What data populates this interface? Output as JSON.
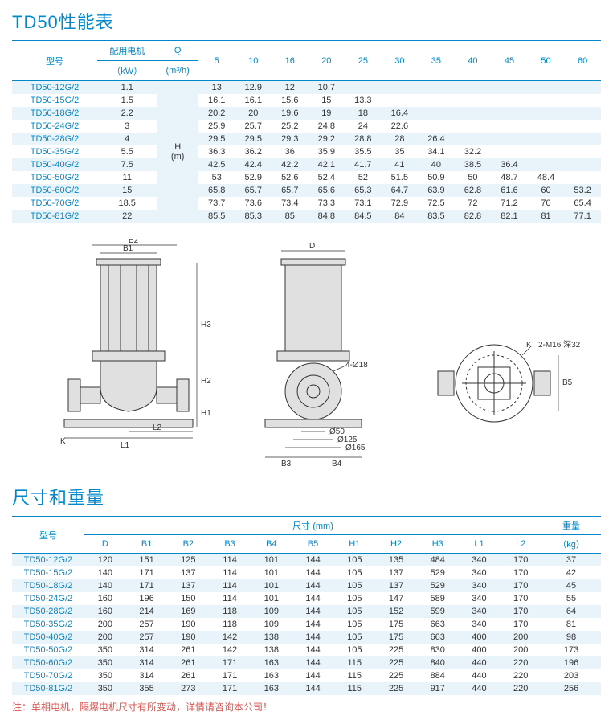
{
  "perfTitle": "TD50性能表",
  "dimTitle": "尺寸和重量",
  "note": "注：单相电机，隔爆电机尺寸有所变动，详情请咨询本公司！",
  "perfHeaders": {
    "model": "型号",
    "motor": "配用电机",
    "motorUnit": "（kW）",
    "q": "Q",
    "qUnit": "(m³/h)",
    "h": "H",
    "hUnit": "(m)",
    "flows": [
      "5",
      "10",
      "16",
      "20",
      "25",
      "30",
      "35",
      "40",
      "45",
      "50",
      "60"
    ]
  },
  "perfRows": [
    {
      "m": "TD50-12G/2",
      "kw": "1.1",
      "v": [
        "13",
        "12.9",
        "12",
        "10.7",
        "",
        "",
        "",
        "",
        "",
        "",
        ""
      ]
    },
    {
      "m": "TD50-15G/2",
      "kw": "1.5",
      "v": [
        "16.1",
        "16.1",
        "15.6",
        "15",
        "13.3",
        "",
        "",
        "",
        "",
        "",
        ""
      ]
    },
    {
      "m": "TD50-18G/2",
      "kw": "2.2",
      "v": [
        "20.2",
        "20",
        "19.6",
        "19",
        "18",
        "16.4",
        "",
        "",
        "",
        "",
        ""
      ]
    },
    {
      "m": "TD50-24G/2",
      "kw": "3",
      "v": [
        "25.9",
        "25.7",
        "25.2",
        "24.8",
        "24",
        "22.6",
        "",
        "",
        "",
        "",
        ""
      ]
    },
    {
      "m": "TD50-28G/2",
      "kw": "4",
      "v": [
        "29.5",
        "29.5",
        "29.3",
        "29.2",
        "28.8",
        "28",
        "26.4",
        "",
        "",
        "",
        ""
      ]
    },
    {
      "m": "TD50-35G/2",
      "kw": "5.5",
      "v": [
        "36.3",
        "36.2",
        "36",
        "35.9",
        "35.5",
        "35",
        "34.1",
        "32.2",
        "",
        "",
        ""
      ]
    },
    {
      "m": "TD50-40G/2",
      "kw": "7.5",
      "v": [
        "42.5",
        "42.4",
        "42.2",
        "42.1",
        "41.7",
        "41",
        "40",
        "38.5",
        "36.4",
        "",
        ""
      ]
    },
    {
      "m": "TD50-50G/2",
      "kw": "11",
      "v": [
        "53",
        "52.9",
        "52.6",
        "52.4",
        "52",
        "51.5",
        "50.9",
        "50",
        "48.7",
        "48.4",
        ""
      ]
    },
    {
      "m": "TD50-60G/2",
      "kw": "15",
      "v": [
        "65.8",
        "65.7",
        "65.7",
        "65.6",
        "65.3",
        "64.7",
        "63.9",
        "62.8",
        "61.6",
        "60",
        "53.2"
      ]
    },
    {
      "m": "TD50-70G/2",
      "kw": "18.5",
      "v": [
        "73.7",
        "73.6",
        "73.4",
        "73.3",
        "73.1",
        "72.9",
        "72.5",
        "72",
        "71.2",
        "70",
        "65.4"
      ]
    },
    {
      "m": "TD50-81G/2",
      "kw": "22",
      "v": [
        "85.5",
        "85.3",
        "85",
        "84.8",
        "84.5",
        "84",
        "83.5",
        "82.8",
        "82.1",
        "81",
        "77.1"
      ]
    }
  ],
  "dimHeaders": {
    "model": "型号",
    "dim": "尺寸 (mm)",
    "weight": "重量",
    "weightUnit": "（kg）",
    "cols": [
      "D",
      "B1",
      "B2",
      "B3",
      "B4",
      "B5",
      "H1",
      "H2",
      "H3",
      "L1",
      "L2"
    ]
  },
  "dimRows": [
    {
      "m": "TD50-12G/2",
      "v": [
        "120",
        "151",
        "125",
        "114",
        "101",
        "144",
        "105",
        "135",
        "484",
        "340",
        "170"
      ],
      "w": "37"
    },
    {
      "m": "TD50-15G/2",
      "v": [
        "140",
        "171",
        "137",
        "114",
        "101",
        "144",
        "105",
        "137",
        "529",
        "340",
        "170"
      ],
      "w": "42"
    },
    {
      "m": "TD50-18G/2",
      "v": [
        "140",
        "171",
        "137",
        "114",
        "101",
        "144",
        "105",
        "137",
        "529",
        "340",
        "170"
      ],
      "w": "45"
    },
    {
      "m": "TD50-24G/2",
      "v": [
        "160",
        "196",
        "150",
        "114",
        "101",
        "144",
        "105",
        "147",
        "589",
        "340",
        "170"
      ],
      "w": "55"
    },
    {
      "m": "TD50-28G/2",
      "v": [
        "160",
        "214",
        "169",
        "118",
        "109",
        "144",
        "105",
        "152",
        "599",
        "340",
        "170"
      ],
      "w": "64"
    },
    {
      "m": "TD50-35G/2",
      "v": [
        "200",
        "257",
        "190",
        "118",
        "109",
        "144",
        "105",
        "175",
        "663",
        "340",
        "170"
      ],
      "w": "81"
    },
    {
      "m": "TD50-40G/2",
      "v": [
        "200",
        "257",
        "190",
        "142",
        "138",
        "144",
        "105",
        "175",
        "663",
        "400",
        "200"
      ],
      "w": "98"
    },
    {
      "m": "TD50-50G/2",
      "v": [
        "350",
        "314",
        "261",
        "142",
        "138",
        "144",
        "105",
        "225",
        "830",
        "400",
        "200"
      ],
      "w": "173"
    },
    {
      "m": "TD50-60G/2",
      "v": [
        "350",
        "314",
        "261",
        "171",
        "163",
        "144",
        "115",
        "225",
        "840",
        "440",
        "220"
      ],
      "w": "196"
    },
    {
      "m": "TD50-70G/2",
      "v": [
        "350",
        "314",
        "261",
        "171",
        "163",
        "144",
        "115",
        "225",
        "884",
        "440",
        "220"
      ],
      "w": "203"
    },
    {
      "m": "TD50-81G/2",
      "v": [
        "350",
        "355",
        "273",
        "171",
        "163",
        "144",
        "115",
        "225",
        "917",
        "440",
        "220"
      ],
      "w": "256"
    }
  ],
  "diagramLabels": {
    "b1": "B1",
    "b2": "B2",
    "b3": "B3",
    "b4": "B4",
    "b5": "B5",
    "h1": "H1",
    "h2": "H2",
    "h3": "H3",
    "l1": "L1",
    "l2": "L2",
    "d": "D",
    "k": "K",
    "holes": "4-Ø18",
    "d50": "Ø50",
    "d125": "Ø125",
    "d165": "Ø165",
    "bolt": "2-M16 深32"
  },
  "colors": {
    "primary": "#0088cc",
    "stripe": "#e8f4fa",
    "text": "#333333",
    "noteColor": "#d9534f"
  }
}
